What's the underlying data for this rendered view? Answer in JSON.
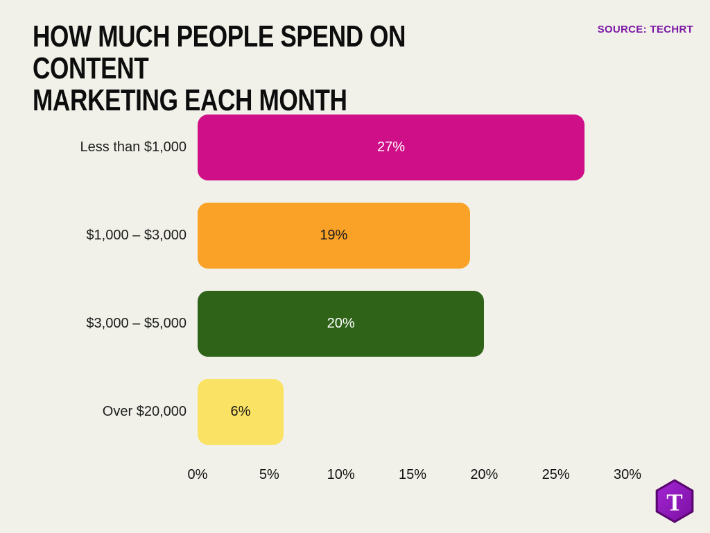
{
  "header": {
    "title_line1": "HOW MUCH PEOPLE SPEND ON CONTENT",
    "title_line2": "MARKETING EACH MONTH",
    "source": "SOURCE: TECHRT"
  },
  "chart_data": {
    "type": "bar",
    "orientation": "horizontal",
    "title": "HOW MUCH PEOPLE SPEND ON CONTENT MARKETING EACH MONTH",
    "categories": [
      "Less than $1,000",
      "$1,000 – $3,000",
      "$3,000 – $5,000",
      "Over $20,000"
    ],
    "values": [
      27,
      19,
      20,
      6
    ],
    "value_labels": [
      "27%",
      "19%",
      "20%",
      "6%"
    ],
    "bar_colors": [
      "#ce0f87",
      "#f9a227",
      "#2e6318",
      "#fae264"
    ],
    "value_text_colors": [
      "#ffffff",
      "#1a1a1a",
      "#ffffff",
      "#1a1a1a"
    ],
    "x_ticks": [
      "0%",
      "5%",
      "10%",
      "15%",
      "20%",
      "25%",
      "30%"
    ],
    "xlim": [
      0,
      30
    ],
    "grid": false,
    "legend": false,
    "background_color": "#f1f1e9"
  },
  "logo": {
    "letter": "T",
    "fill_color": "#8a12b5",
    "border_color": "#59076f"
  }
}
